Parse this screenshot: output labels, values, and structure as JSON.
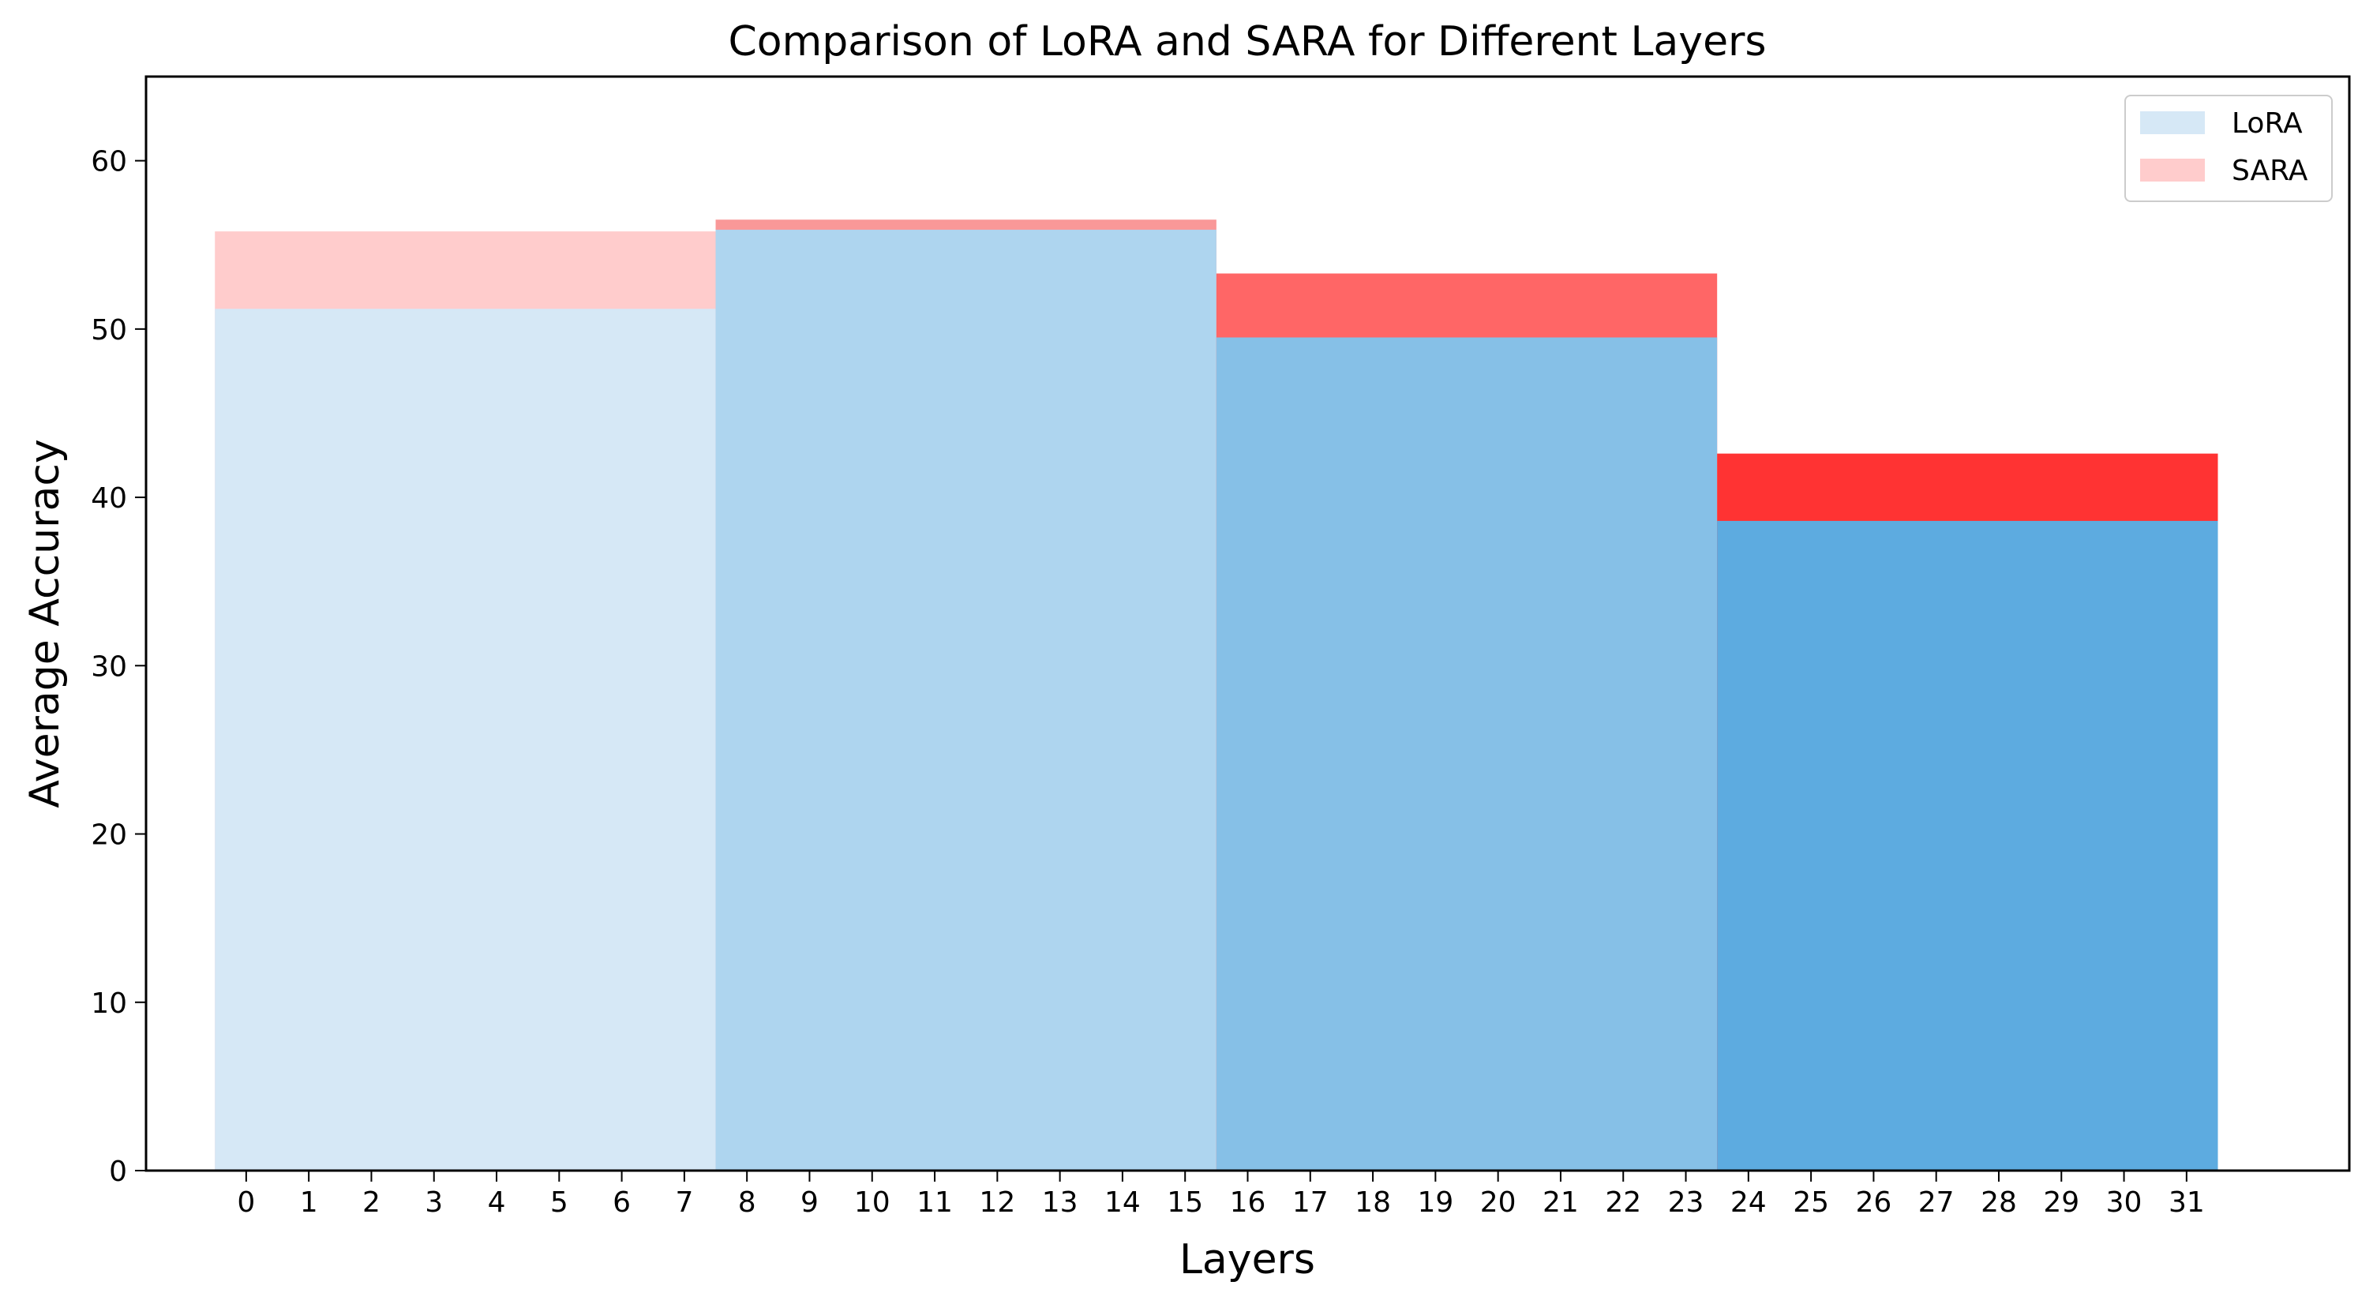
{
  "chart_data": {
    "type": "bar",
    "title": "Comparison of LoRA and SARA for Different Layers",
    "xlabel": "Layers",
    "ylabel": "Average Accuracy",
    "xlim": [
      -1.6,
      33.6
    ],
    "ylim": [
      0,
      65
    ],
    "x_ticks": [
      0,
      1,
      2,
      3,
      4,
      5,
      6,
      7,
      8,
      9,
      10,
      11,
      12,
      13,
      14,
      15,
      16,
      17,
      18,
      19,
      20,
      21,
      22,
      23,
      24,
      25,
      26,
      27,
      28,
      29,
      30,
      31
    ],
    "y_ticks": [
      0,
      10,
      20,
      30,
      40,
      50,
      60
    ],
    "groups": [
      {
        "layers": [
          0,
          7
        ],
        "LoRA": 51.2,
        "SARA": 55.8,
        "lora_color": "#d6e8f6",
        "sara_color": "#ffcccc"
      },
      {
        "layers": [
          8,
          15
        ],
        "LoRA": 55.9,
        "SARA": 56.5,
        "lora_color": "#aed5ef",
        "sara_color": "#f99898"
      },
      {
        "layers": [
          16,
          23
        ],
        "LoRA": 49.5,
        "SARA": 53.3,
        "lora_color": "#86c0e7",
        "sara_color": "#ff6666"
      },
      {
        "layers": [
          24,
          31
        ],
        "LoRA": 38.6,
        "SARA": 42.6,
        "lora_color": "#5dabe0",
        "sara_color": "#ff3333"
      }
    ],
    "series": [
      {
        "name": "LoRA",
        "legend_color": "#d6e8f6"
      },
      {
        "name": "SARA",
        "legend_color": "#ffcccc"
      }
    ],
    "legend_position": "top-right",
    "grid": false
  }
}
